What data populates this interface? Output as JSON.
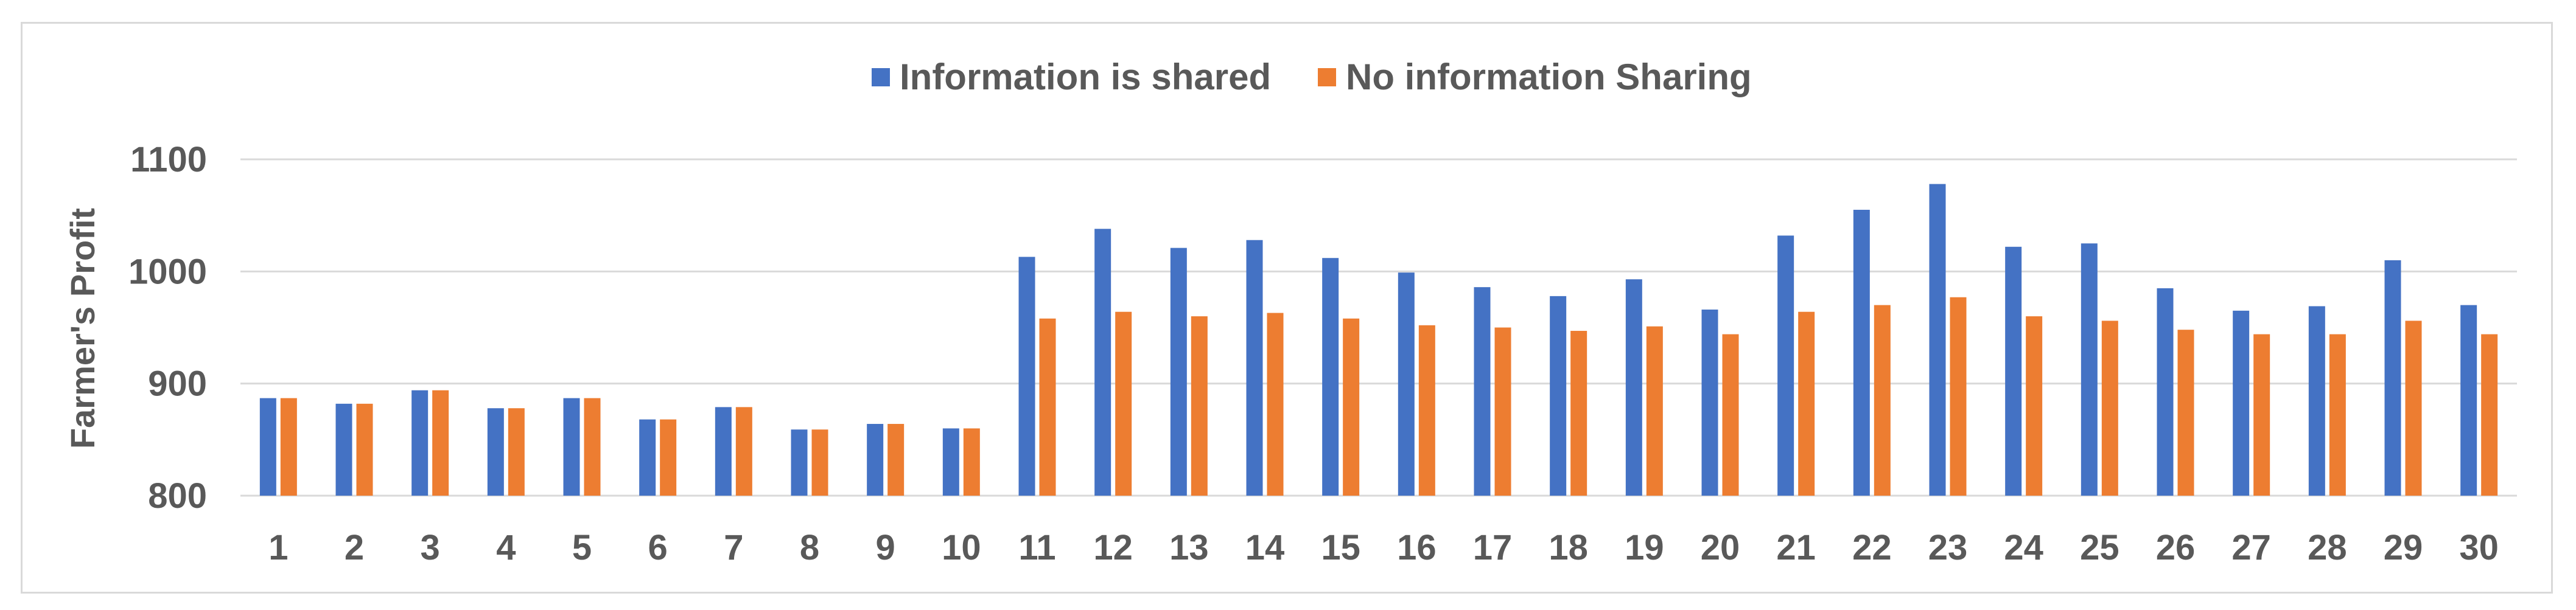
{
  "chart_data": {
    "type": "bar",
    "ylabel": "Farmer's Profit",
    "ylim": [
      800,
      1100
    ],
    "yticks": [
      800,
      900,
      1000,
      1100
    ],
    "grid": true,
    "legend_position": "top-center",
    "categories": [
      "1",
      "2",
      "3",
      "4",
      "5",
      "6",
      "7",
      "8",
      "9",
      "10",
      "11",
      "12",
      "13",
      "14",
      "15",
      "16",
      "17",
      "18",
      "19",
      "20",
      "21",
      "22",
      "23",
      "24",
      "25",
      "26",
      "27",
      "28",
      "29",
      "30"
    ],
    "series": [
      {
        "name": "Information is shared",
        "color": "#4472c4",
        "values": [
          887,
          882,
          894,
          878,
          887,
          868,
          879,
          859,
          864,
          860,
          1013,
          1038,
          1021,
          1028,
          1012,
          999,
          986,
          978,
          993,
          966,
          1032,
          1055,
          1078,
          1022,
          1025,
          985,
          965,
          969,
          1010,
          970
        ]
      },
      {
        "name": "No information Sharing",
        "color": "#ed7d31",
        "values": [
          887,
          882,
          894,
          878,
          887,
          868,
          879,
          859,
          864,
          860,
          958,
          964,
          960,
          963,
          958,
          952,
          950,
          947,
          951,
          944,
          964,
          970,
          977,
          960,
          956,
          948,
          944,
          944,
          956,
          944
        ]
      }
    ]
  }
}
